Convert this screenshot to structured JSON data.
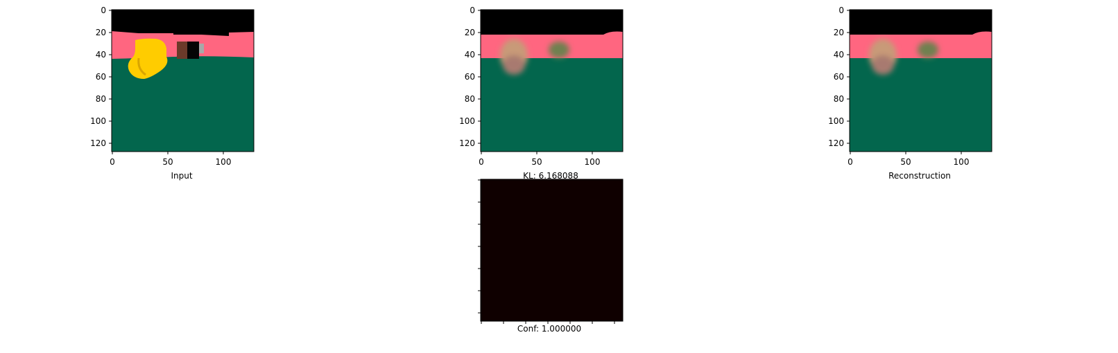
{
  "panels": [
    {
      "caption": "Input",
      "x_ticks": [
        "0",
        "50",
        "100"
      ],
      "y_ticks": [
        "0",
        "20",
        "40",
        "60",
        "80",
        "100",
        "120"
      ]
    },
    {
      "caption": "KL: 6.168088",
      "x_ticks": [
        "0",
        "50",
        "100"
      ],
      "y_ticks": [
        "0",
        "20",
        "40",
        "60",
        "80",
        "100",
        "120"
      ]
    },
    {
      "caption": "Reconstruction",
      "x_ticks": [
        "0",
        "50",
        "100"
      ],
      "y_ticks": [
        "0",
        "20",
        "40",
        "60",
        "80",
        "100",
        "120"
      ]
    },
    {
      "caption": "Conf: 1.000000"
    }
  ],
  "colors": {
    "sky": "#000000",
    "wall": "#ff6680",
    "floor": "#03664d",
    "duck": "#ffcc00",
    "conf_map": "#0f0000"
  },
  "icons": [
    "yellow-duck-object",
    "box-object"
  ]
}
